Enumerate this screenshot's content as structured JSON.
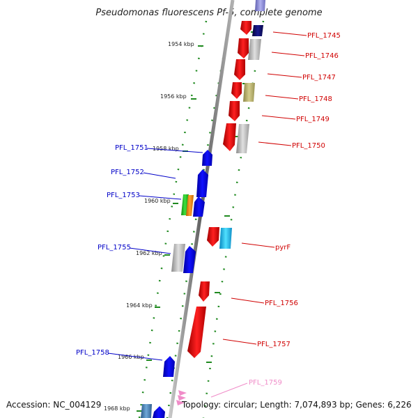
{
  "title": "Pseudomonas fluorescens Pf-5, complete genome",
  "footer": {
    "accession": "Accession: NC_004129",
    "topology": "Topology: circular; Length: 7,074,893 bp; Genes: 6,226"
  },
  "ruler_labels": [
    "1954 kbp",
    "1956 kbp",
    "1958 kbp",
    "1960 kbp",
    "1962 kbp",
    "1964 kbp",
    "1966 kbp",
    "1968 kbp"
  ],
  "gene_labels_left": [
    "PFL_1751",
    "PFL_1752",
    "PFL_1753",
    "PFL_1755",
    "PFL_1758"
  ],
  "gene_labels_right": [
    "PFL_1745",
    "PFL_1746",
    "PFL_1747",
    "PFL_1748",
    "PFL_1749",
    "PFL_1750",
    "pyrF",
    "PFL_1756",
    "PFL_1757",
    "PFL_1759"
  ],
  "colors": {
    "forward_gene": "#ee0000",
    "reverse_gene": "#0000ee",
    "grey_feature": "#b8b8b8",
    "navy_feature": "#101070",
    "khaki_feature": "#b4ae6c",
    "cyan_feature": "#20b8e8",
    "green_feature": "#20c020",
    "orange_feature": "#f08a10",
    "steel_feature": "#4680b0",
    "pink_feature": "#f08cc8",
    "tick_green": "#208a20",
    "backbone": "#808080"
  }
}
